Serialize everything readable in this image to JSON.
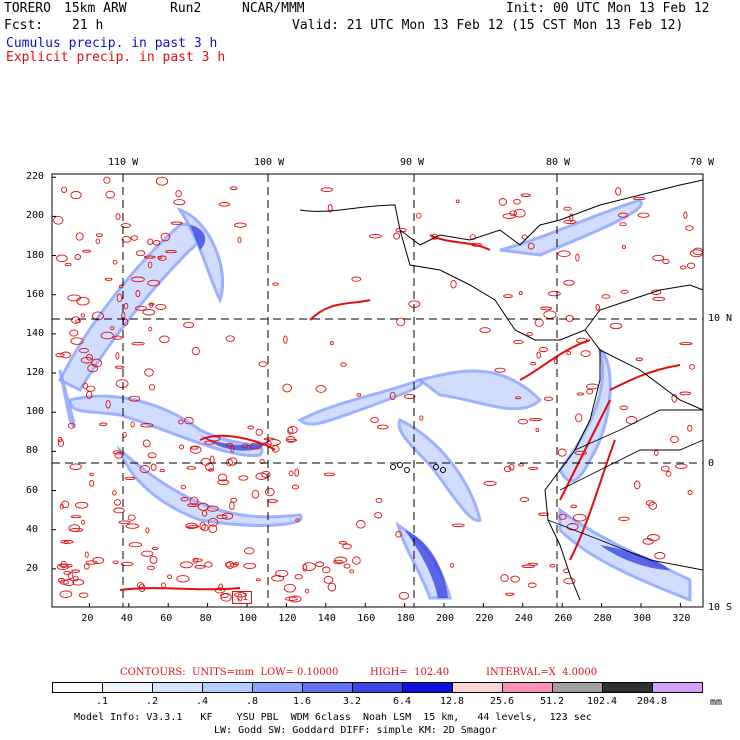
{
  "header": {
    "model": "TORERO",
    "res": "15km ARW",
    "run": "Run2",
    "org": "NCAR/MMM",
    "init": "Init: 00 UTC Mon 13 Feb 12",
    "fcst_label": "Fcst:",
    "fcst_value": "21 h",
    "valid": "Valid: 21 UTC Mon 13 Feb 12 (15 CST Mon 13 Feb 12)",
    "cumulus": "Cumulus precip. in past 3 h",
    "explicit": "Explicit precip. in past 3 h"
  },
  "map": {
    "lon_labels": [
      "110 W",
      "100 W",
      "90 W",
      "80 W",
      "70 W"
    ],
    "lat_labels": [
      "10 N",
      "0",
      "10 S"
    ],
    "y_ticks": [
      "220",
      "200",
      "180",
      "160",
      "140",
      "120",
      "100",
      "80",
      "60",
      "40",
      "20"
    ],
    "x_ticks": [
      "20",
      "40",
      "60",
      "80",
      "100",
      "120",
      "140",
      "160",
      "180",
      "200",
      "220",
      "240",
      "260",
      "280",
      "300",
      "320"
    ],
    "box_label": ".1"
  },
  "footer": {
    "contours": "CONTOURS:  UNITS=mm  LOW= 0.10000",
    "high": "HIGH=  102.40",
    "interval": "INTERVAL=X  4.0000",
    "colorbar": {
      "labels": [
        ".1",
        ".2",
        ".4",
        ".8",
        "1.6",
        "3.2",
        "6.4",
        "12.8",
        "25.6",
        "51.2",
        "102.4",
        "204.8"
      ],
      "colors": [
        "#ffffff",
        "#eef4ff",
        "#d4e4ff",
        "#b4ccff",
        "#8ca4ff",
        "#6470f0",
        "#3c46e0",
        "#1010d8",
        "#ffd4d4",
        "#ff90b8",
        "#a0a0a0",
        "#303030",
        "#d4a0ff"
      ],
      "unit": "mm"
    },
    "model_info": "Model Info: V3.3.1   KF    YSU PBL  WDM 6class  Noah LSM  15 km,   44 levels,  123 sec",
    "model_info2": "LW: Godd SW: Goddard DIFF: simple KM: 2D Smagor"
  }
}
